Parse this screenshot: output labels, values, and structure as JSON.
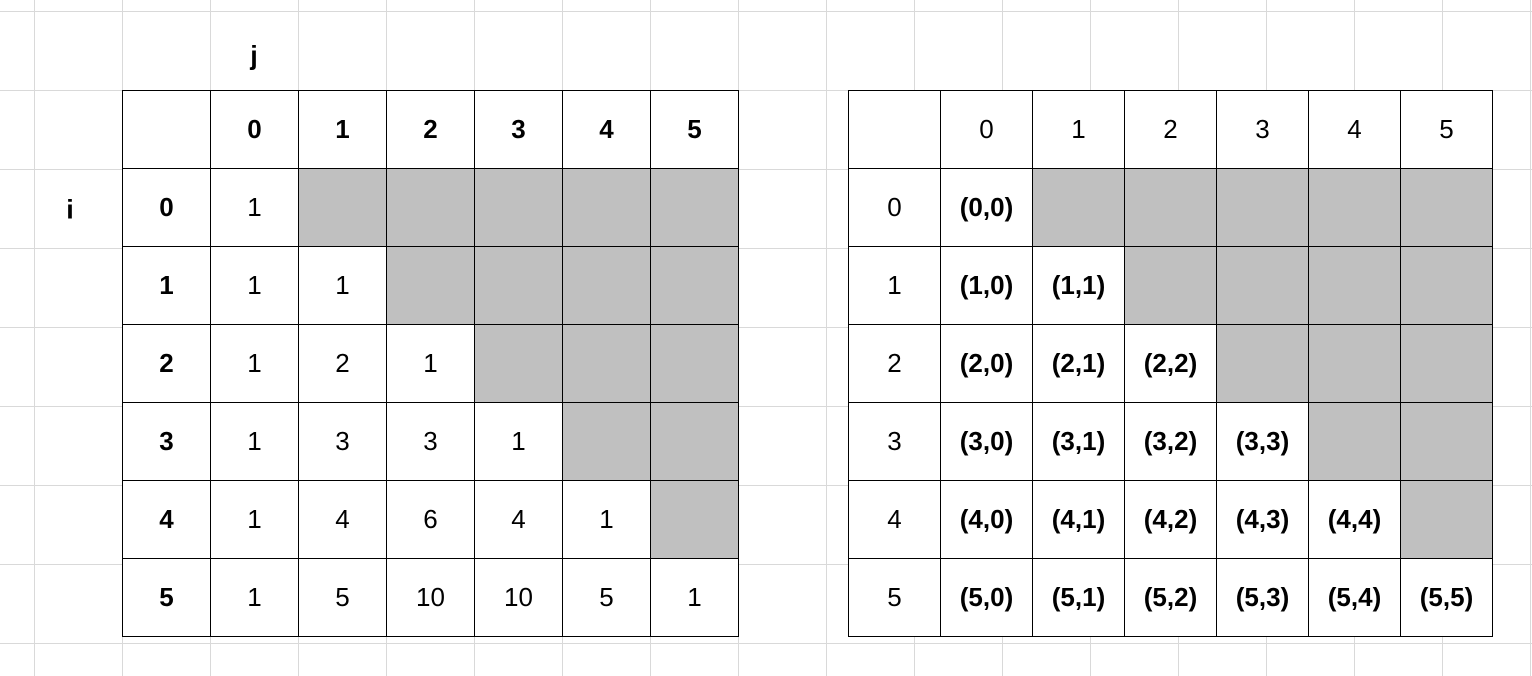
{
  "left_grid": {
    "col_axis_label": "j",
    "row_axis_label": "i",
    "col_headers": [
      "0",
      "1",
      "2",
      "3",
      "4",
      "5"
    ],
    "row_headers": [
      "0",
      "1",
      "2",
      "3",
      "4",
      "5"
    ],
    "rows": [
      [
        "1"
      ],
      [
        "1",
        "1"
      ],
      [
        "1",
        "2",
        "1"
      ],
      [
        "1",
        "3",
        "3",
        "1"
      ],
      [
        "1",
        "4",
        "6",
        "4",
        "1"
      ],
      [
        "1",
        "5",
        "10",
        "10",
        "5",
        "1"
      ]
    ],
    "shade_color": "#c0c0c0"
  },
  "right_grid": {
    "col_headers": [
      "0",
      "1",
      "2",
      "3",
      "4",
      "5"
    ],
    "row_headers": [
      "0",
      "1",
      "2",
      "3",
      "4",
      "5"
    ],
    "rows": [
      [
        "(0,0)"
      ],
      [
        "(1,0)",
        "(1,1)"
      ],
      [
        "(2,0)",
        "(2,1)",
        "(2,2)"
      ],
      [
        "(3,0)",
        "(3,1)",
        "(3,2)",
        "(3,3)"
      ],
      [
        "(4,0)",
        "(4,1)",
        "(4,2)",
        "(4,3)",
        "(4,4)"
      ],
      [
        "(5,0)",
        "(5,1)",
        "(5,2)",
        "(5,3)",
        "(5,4)",
        "(5,5)"
      ]
    ],
    "shade_color": "#c0c0c0"
  }
}
